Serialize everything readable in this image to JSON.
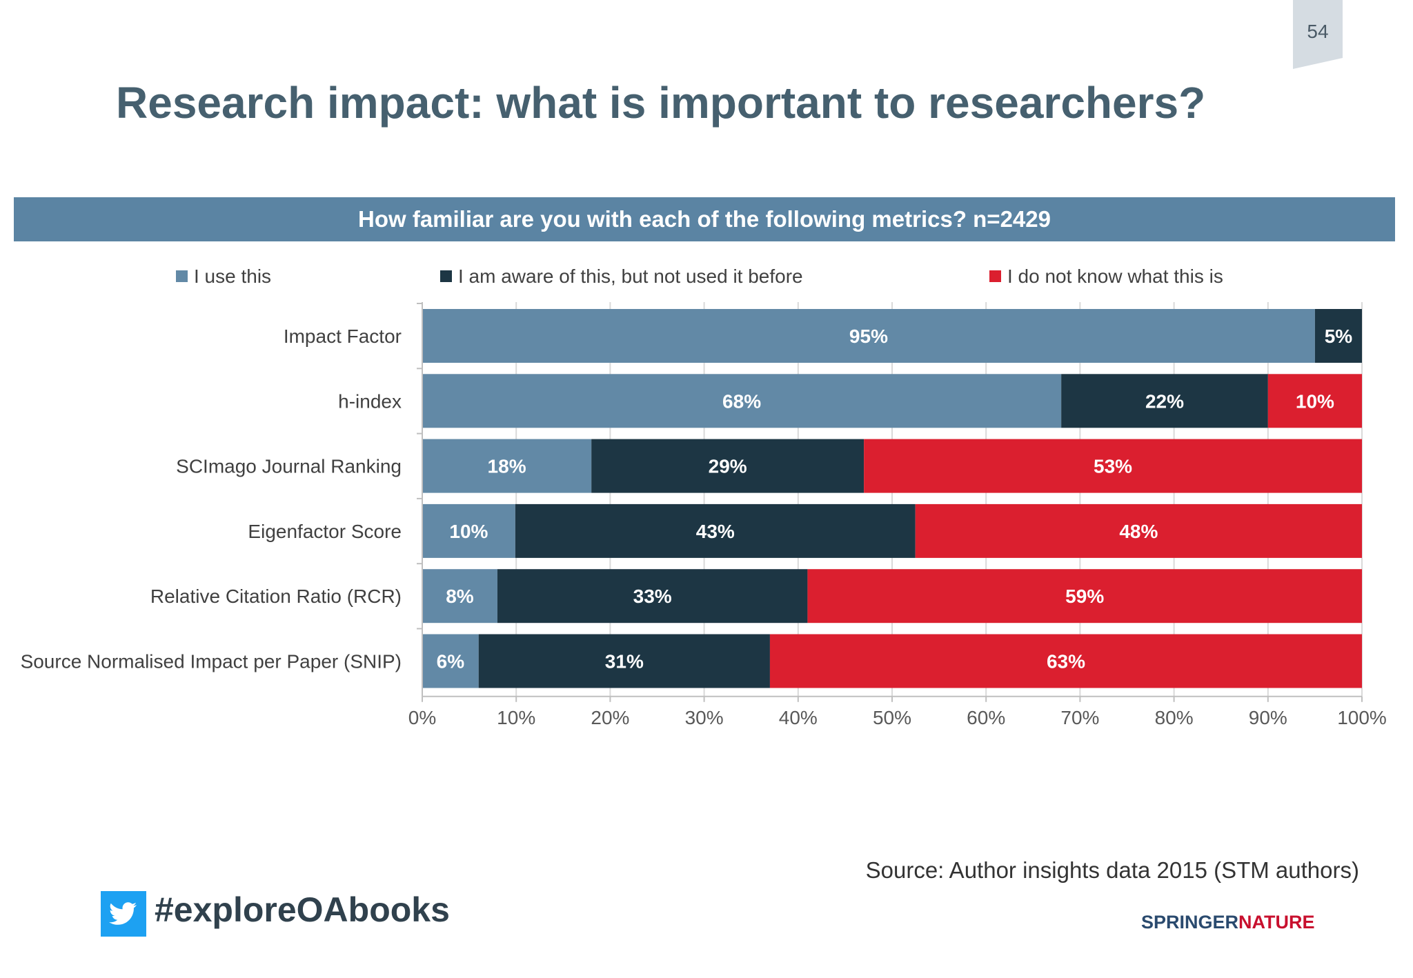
{
  "page_number": "54",
  "title": "Research impact: what is important to researchers?",
  "source": "Source: Author insights data 2015 (STM authors)",
  "hashtag": "#exploreOAbooks",
  "brand": {
    "part1": "SPRINGER",
    "part2": "NATURE"
  },
  "icons": {
    "social": "twitter-icon"
  },
  "chart_data": {
    "type": "bar",
    "orientation": "horizontal",
    "stacked": true,
    "title": "How familiar are you with each of the following metrics? n=2429",
    "categories": [
      "Impact Factor",
      "h-index",
      "SCImago Journal Ranking",
      "Eigenfactor Score",
      "Relative Citation Ratio (RCR)",
      "Source Normalised Impact per Paper (SNIP)"
    ],
    "series": [
      {
        "name": "I use this",
        "color": "#6289a6",
        "values": [
          95,
          68,
          18,
          10,
          8,
          6
        ]
      },
      {
        "name": "I am aware of this, but not used it before",
        "color": "#1d3644",
        "values": [
          5,
          22,
          29,
          43,
          33,
          31
        ]
      },
      {
        "name": "I do not know what this is",
        "color": "#db1f2f",
        "values": [
          0,
          10,
          53,
          48,
          59,
          63
        ]
      }
    ],
    "data_labels": [
      [
        "95%",
        "5%",
        ""
      ],
      [
        "68%",
        "22%",
        "10%"
      ],
      [
        "18%",
        "29%",
        "53%"
      ],
      [
        "10%",
        "43%",
        "48%"
      ],
      [
        "8%",
        "33%",
        "59%"
      ],
      [
        "6%",
        "31%",
        "63%"
      ]
    ],
    "xlim": [
      0,
      100
    ],
    "x_ticks": [
      "0%",
      "10%",
      "20%",
      "30%",
      "40%",
      "50%",
      "60%",
      "70%",
      "80%",
      "90%",
      "100%"
    ],
    "legend_position": "top",
    "grid": true,
    "colors": {
      "use": "#6289a6",
      "aware": "#1d3644",
      "unknown": "#db1f2f",
      "grid": "#d9d9d9"
    }
  }
}
